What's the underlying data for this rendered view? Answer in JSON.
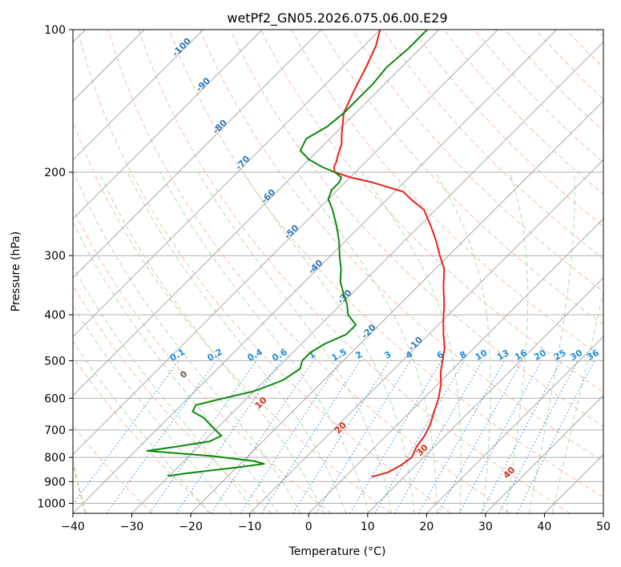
{
  "chart_data": {
    "type": "line",
    "subtype": "skew-t log-p",
    "title": "wetPf2_GN05.2026.075.06.00.E29",
    "xlabel": "Temperature (°C)",
    "ylabel": "Pressure (hPa)",
    "xlim": [
      -40,
      50
    ],
    "ylim": [
      1050,
      100
    ],
    "x_ticks": [
      -40,
      -30,
      -20,
      -10,
      0,
      10,
      20,
      30,
      40,
      50
    ],
    "y_ticks": [
      1000,
      900,
      800,
      700,
      600,
      500,
      400,
      300,
      200,
      100
    ],
    "grid": true,
    "series": [
      {
        "name": "Temperature",
        "color": "#e8231c",
        "points": [
          [
            880,
            4.5
          ],
          [
            860,
            6.5
          ],
          [
            830,
            7.5
          ],
          [
            800,
            8
          ],
          [
            760,
            7
          ],
          [
            720,
            6.5
          ],
          [
            680,
            5.5
          ],
          [
            640,
            4
          ],
          [
            600,
            2.5
          ],
          [
            560,
            0.5
          ],
          [
            530,
            -1.5
          ],
          [
            500,
            -3.2
          ],
          [
            470,
            -5
          ],
          [
            440,
            -7.5
          ],
          [
            410,
            -10
          ],
          [
            380,
            -12.5
          ],
          [
            350,
            -15.5
          ],
          [
            320,
            -18.5
          ],
          [
            300,
            -21.5
          ],
          [
            280,
            -24.5
          ],
          [
            260,
            -28
          ],
          [
            240,
            -32
          ],
          [
            228,
            -36
          ],
          [
            220,
            -38.5
          ],
          [
            210,
            -45.5
          ],
          [
            205,
            -50
          ],
          [
            200,
            -53.5
          ],
          [
            195,
            -54.5
          ],
          [
            190,
            -55
          ],
          [
            183,
            -56
          ],
          [
            175,
            -57
          ],
          [
            165,
            -59
          ],
          [
            150,
            -62
          ],
          [
            135,
            -64
          ],
          [
            120,
            -66
          ],
          [
            108,
            -68
          ],
          [
            100,
            -70
          ]
        ]
      },
      {
        "name": "Dewpoint",
        "color": "#0b8a0b",
        "points": [
          [
            870,
            -30.5
          ],
          [
            875,
            -30
          ],
          [
            866,
            -28
          ],
          [
            840,
            -20
          ],
          [
            825,
            -16
          ],
          [
            815,
            -18
          ],
          [
            795,
            -26
          ],
          [
            775,
            -38
          ],
          [
            760,
            -34
          ],
          [
            740,
            -29
          ],
          [
            720,
            -28
          ],
          [
            700,
            -30
          ],
          [
            680,
            -32
          ],
          [
            660,
            -34
          ],
          [
            640,
            -37
          ],
          [
            620,
            -37.5
          ],
          [
            600,
            -34
          ],
          [
            580,
            -30
          ],
          [
            550,
            -27
          ],
          [
            520,
            -26
          ],
          [
            500,
            -27
          ],
          [
            480,
            -27
          ],
          [
            460,
            -26
          ],
          [
            440,
            -24
          ],
          [
            420,
            -24
          ],
          [
            400,
            -27
          ],
          [
            380,
            -29
          ],
          [
            360,
            -31.5
          ],
          [
            340,
            -34
          ],
          [
            320,
            -36
          ],
          [
            300,
            -38.5
          ],
          [
            280,
            -41
          ],
          [
            260,
            -44
          ],
          [
            240,
            -47.5
          ],
          [
            228,
            -50
          ],
          [
            218,
            -51
          ],
          [
            210,
            -51
          ],
          [
            205,
            -51.5
          ],
          [
            200,
            -53.5
          ],
          [
            195,
            -56.5
          ],
          [
            188,
            -60
          ],
          [
            180,
            -63
          ],
          [
            170,
            -64
          ],
          [
            160,
            -62.5
          ],
          [
            150,
            -62
          ],
          [
            140,
            -62
          ],
          [
            130,
            -62
          ],
          [
            120,
            -62.5
          ],
          [
            110,
            -62
          ],
          [
            100,
            -62
          ]
        ]
      }
    ],
    "isotherm_labels": [
      -100,
      -90,
      -80,
      -70,
      -60,
      -50,
      -40,
      -30,
      -20,
      -10
    ],
    "isotherm_label_pressures": [
      110,
      132,
      162,
      193,
      227,
      270,
      320,
      370,
      438,
      465
    ],
    "dry_adiabat_labels_theta_c": [
      0,
      10,
      20,
      30,
      40
    ],
    "dry_adiabat_label_pressures": [
      540,
      620,
      700,
      780,
      870
    ],
    "mixing_ratio_labels": [
      "0.1",
      "0.2",
      "0.4",
      "0.6",
      "1",
      "1.5",
      "2",
      "3",
      "4",
      "6",
      "8",
      "10",
      "13",
      "16",
      "20",
      "25",
      "30",
      "36"
    ],
    "mixing_ratio_values": [
      0.1,
      0.2,
      0.4,
      0.6,
      1,
      1.5,
      2,
      3,
      4,
      6,
      8,
      10,
      13,
      16,
      20,
      25,
      30,
      36
    ],
    "colors": {
      "isotherm_label": "#2e7ab8",
      "dry_adiabat": "#f4a582",
      "dry_adiabat_label": "#d7301f",
      "moist_adiabat": "#9fd39f",
      "mixing_ratio": "#3b8fe0",
      "mixing_ratio_label": "#1f8ee0",
      "grid": "#b0b0b0",
      "isotherm_line": "#a9a9a9",
      "wetbulb_curve": "#d9c7a8"
    }
  }
}
